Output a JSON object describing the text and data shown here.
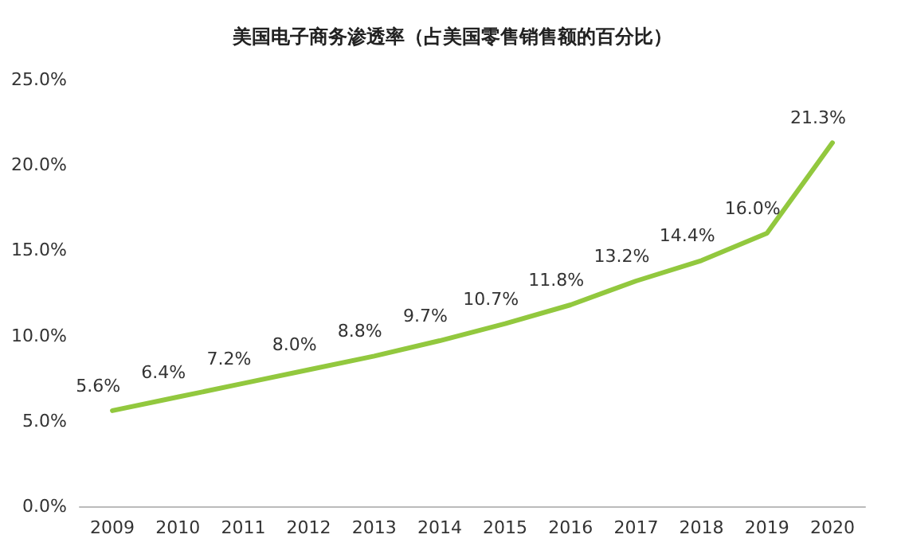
{
  "chart_data": {
    "type": "line",
    "title": "美国电子商务渗透率（占美国零售销售额的百分比）",
    "categories": [
      "2009",
      "2010",
      "2011",
      "2012",
      "2013",
      "2014",
      "2015",
      "2016",
      "2017",
      "2018",
      "2019",
      "2020"
    ],
    "series": [
      {
        "color": "#92c83e",
        "values": [
          5.6,
          6.4,
          7.2,
          8.0,
          8.8,
          9.7,
          10.7,
          11.8,
          13.2,
          14.4,
          16.0,
          21.3
        ],
        "value_labels": [
          "5.6%",
          "6.4%",
          "7.2%",
          "8.0%",
          "8.8%",
          "9.7%",
          "10.7%",
          "11.8%",
          "13.2%",
          "14.4%",
          "16.0%",
          "21.3%"
        ]
      }
    ],
    "ylim": [
      0,
      25
    ],
    "yticks": [
      {
        "value": 0,
        "label": "0.0%"
      },
      {
        "value": 5,
        "label": "5.0%"
      },
      {
        "value": 10,
        "label": "10.0%"
      },
      {
        "value": 15,
        "label": "15.0%"
      },
      {
        "value": 20,
        "label": "20.0%"
      },
      {
        "value": 25,
        "label": "25.0%"
      }
    ],
    "grid": false,
    "marker": "none",
    "line_style": "solid"
  }
}
